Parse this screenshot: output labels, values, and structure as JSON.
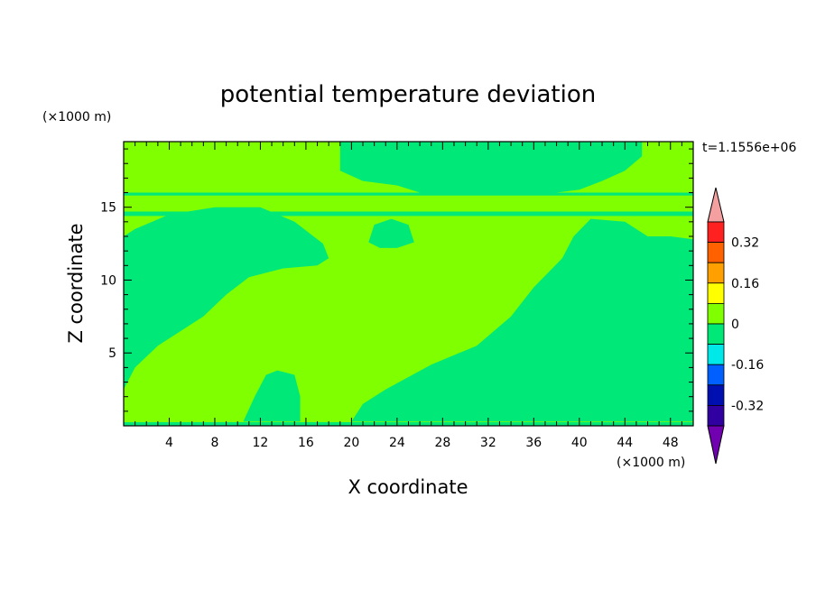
{
  "chart_data": {
    "type": "heatmap",
    "title": "potential temperature deviation",
    "xlabel": "X coordinate",
    "ylabel": "Z coordinate",
    "x_unit": "(×1000 m)",
    "y_unit": "(×1000 m)",
    "time_label": "t=1.1556e+06",
    "xlim": [
      0,
      50
    ],
    "ylim": [
      0,
      19.5
    ],
    "x_ticks": [
      4,
      8,
      12,
      16,
      20,
      24,
      28,
      32,
      36,
      40,
      44,
      48
    ],
    "y_ticks": [
      5,
      10,
      15
    ],
    "field": {
      "background_level": "0 to 0.08",
      "regions": [
        {
          "level": "-0.08 to 0",
          "description": "left lower lobe",
          "polygon": [
            [
              0,
              2.5
            ],
            [
              1,
              4
            ],
            [
              3,
              5.5
            ],
            [
              5,
              6.5
            ],
            [
              7,
              7.5
            ],
            [
              9,
              9
            ],
            [
              11,
              10.2
            ],
            [
              14,
              10.8
            ],
            [
              17,
              11
            ],
            [
              18,
              11.5
            ],
            [
              17.5,
              12.5
            ],
            [
              15,
              14
            ],
            [
              12,
              15
            ],
            [
              8,
              15
            ],
            [
              4,
              14.5
            ],
            [
              1,
              13.5
            ],
            [
              0,
              13
            ]
          ]
        },
        {
          "level": "-0.08 to 0",
          "description": "surface blob",
          "polygon": [
            [
              10.5,
              0.3
            ],
            [
              11.5,
              2
            ],
            [
              12.5,
              3.5
            ],
            [
              13.5,
              3.8
            ],
            [
              15,
              3.5
            ],
            [
              15.5,
              2
            ],
            [
              15.5,
              0.3
            ]
          ]
        },
        {
          "level": "-0.08 to 0",
          "description": "right region",
          "polygon": [
            [
              20,
              0.3
            ],
            [
              21,
              1.5
            ],
            [
              23,
              2.5
            ],
            [
              27,
              4.2
            ],
            [
              31,
              5.5
            ],
            [
              34,
              7.5
            ],
            [
              36,
              9.5
            ],
            [
              38.5,
              11.5
            ],
            [
              39.5,
              13
            ],
            [
              41,
              14.2
            ],
            [
              44,
              14
            ],
            [
              46,
              13
            ],
            [
              48,
              13
            ],
            [
              50,
              12.8
            ],
            [
              50,
              0.3
            ]
          ]
        },
        {
          "level": "-0.08 to 0",
          "description": "upper right cloud",
          "polygon": [
            [
              19,
              19.5
            ],
            [
              19,
              17.5
            ],
            [
              21,
              16.8
            ],
            [
              24,
              16.5
            ],
            [
              26,
              16
            ],
            [
              32,
              16
            ],
            [
              38,
              16
            ],
            [
              40,
              16.2
            ],
            [
              42,
              16.8
            ],
            [
              44,
              17.5
            ],
            [
              45.5,
              18.5
            ],
            [
              45.5,
              19.5
            ]
          ]
        },
        {
          "level": "-0.08 to 0",
          "description": "tropopause band",
          "polygon": [
            [
              0,
              16
            ],
            [
              50,
              16
            ],
            [
              50,
              15.8
            ],
            [
              0,
              15.8
            ]
          ]
        },
        {
          "level": "-0.08 to 0",
          "description": "tropopause band lower",
          "polygon": [
            [
              0,
              14.7
            ],
            [
              50,
              14.7
            ],
            [
              50,
              14.4
            ],
            [
              0,
              14.4
            ]
          ]
        },
        {
          "level": "-0.08 to 0",
          "description": "small blob",
          "polygon": [
            [
              21.5,
              12.6
            ],
            [
              22,
              13.8
            ],
            [
              23.5,
              14.2
            ],
            [
              25,
              13.8
            ],
            [
              25.5,
              12.6
            ],
            [
              24,
              12.2
            ],
            [
              22.5,
              12.2
            ]
          ]
        },
        {
          "level": "-0.08 to 0",
          "description": "surface strip",
          "polygon": [
            [
              0,
              0.25
            ],
            [
              50,
              0.25
            ],
            [
              50,
              0
            ],
            [
              0,
              0
            ]
          ]
        }
      ]
    },
    "colorbar": {
      "labels": [
        "0.32",
        "0.16",
        "0",
        "-0.16",
        "-0.32"
      ],
      "label_values": [
        0.32,
        0.16,
        0,
        -0.16,
        -0.32
      ],
      "bins": [
        {
          "range": "above 0.4",
          "color": "#f4a0a0"
        },
        {
          "range": "0.32 to 0.4",
          "color": "#ff2020"
        },
        {
          "range": "0.24 to 0.32",
          "color": "#ff6000"
        },
        {
          "range": "0.16 to 0.24",
          "color": "#ff9f00"
        },
        {
          "range": "0.08 to 0.16",
          "color": "#ffff00"
        },
        {
          "range": "0 to 0.08",
          "color": "#80ff00"
        },
        {
          "range": "-0.08 to 0",
          "color": "#00e878"
        },
        {
          "range": "-0.16 to -0.08",
          "color": "#00e8e8"
        },
        {
          "range": "-0.24 to -0.16",
          "color": "#0060ff"
        },
        {
          "range": "-0.32 to -0.24",
          "color": "#0010b0"
        },
        {
          "range": "-0.4 to -0.32",
          "color": "#3000a0"
        },
        {
          "range": "below -0.4",
          "color": "#7000b0"
        }
      ]
    }
  }
}
